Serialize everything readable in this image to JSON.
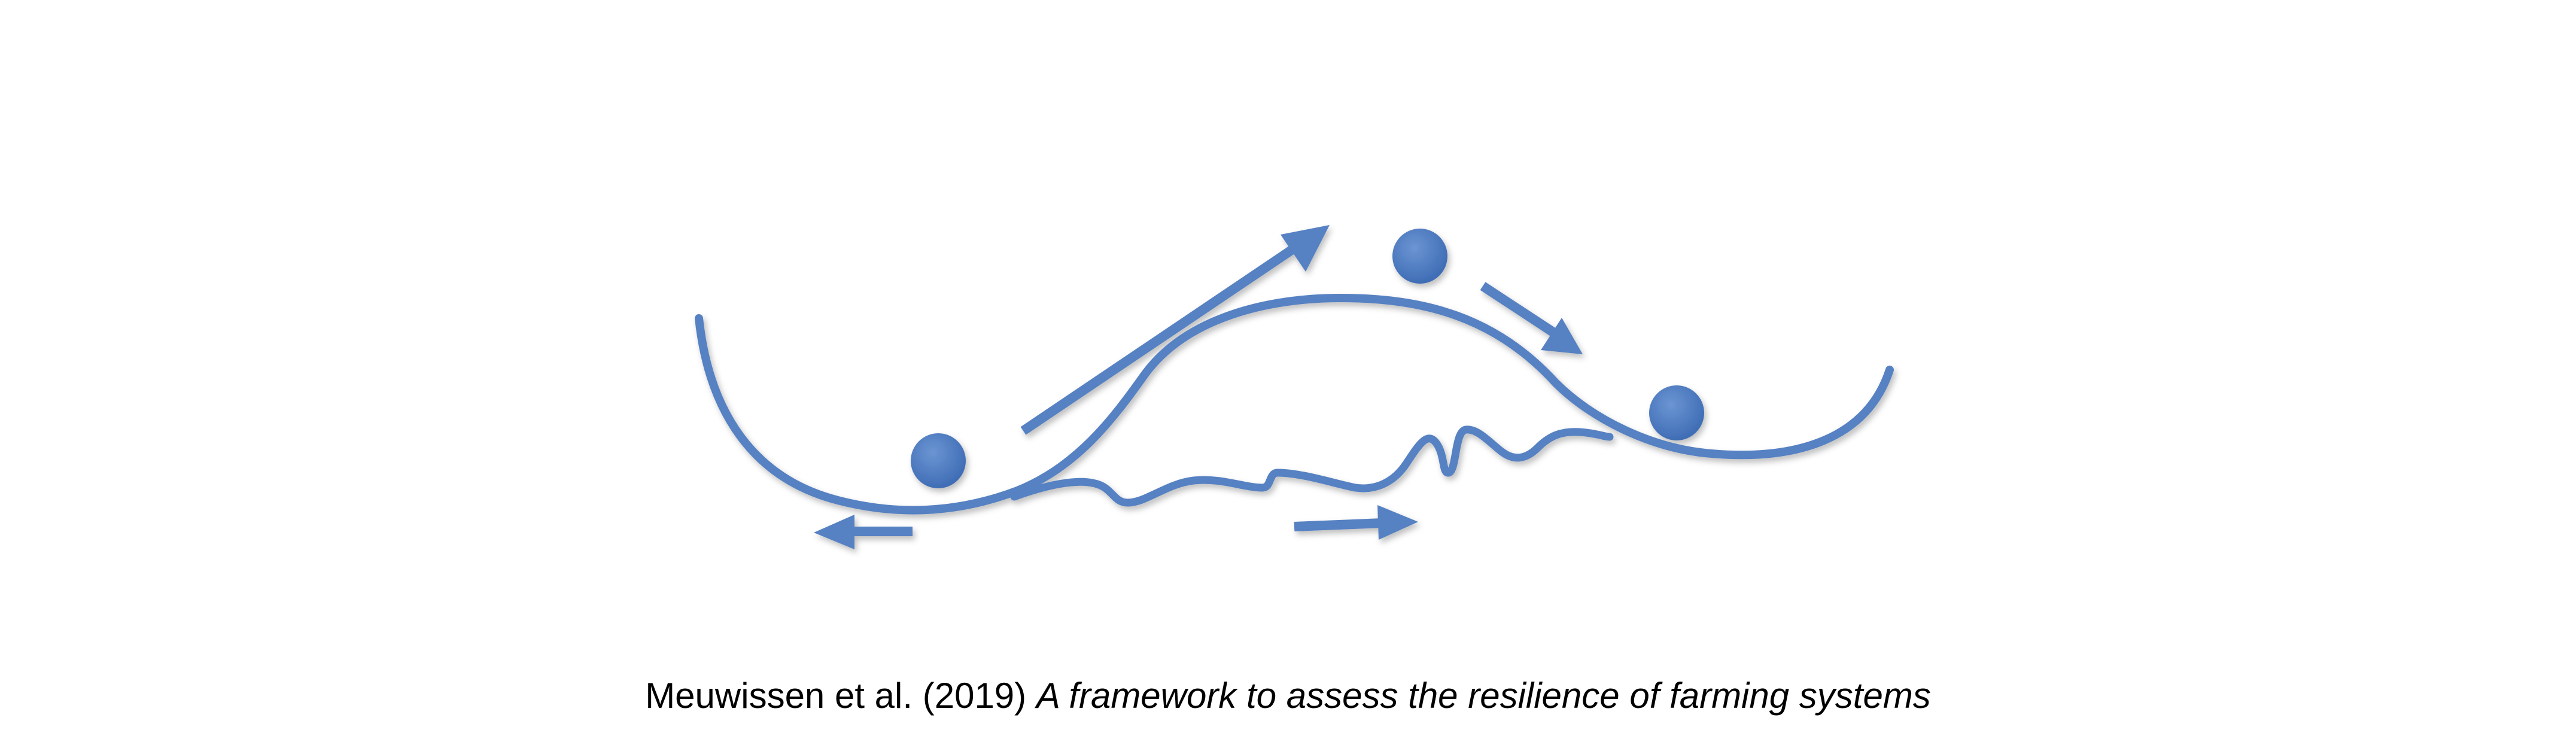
{
  "diagram": {
    "accent_color": "#5681c2",
    "elements": [
      "left-valley-curve",
      "hill-curve",
      "wavy-ground-line",
      "ball-left-valley",
      "ball-hilltop",
      "ball-right-valley",
      "arrow-up-right",
      "arrow-down-right",
      "arrow-left",
      "arrow-right"
    ]
  },
  "caption": {
    "reference": "Meuwissen et al. (2019)",
    "title": "A framework to assess the resilience of farming systems"
  }
}
